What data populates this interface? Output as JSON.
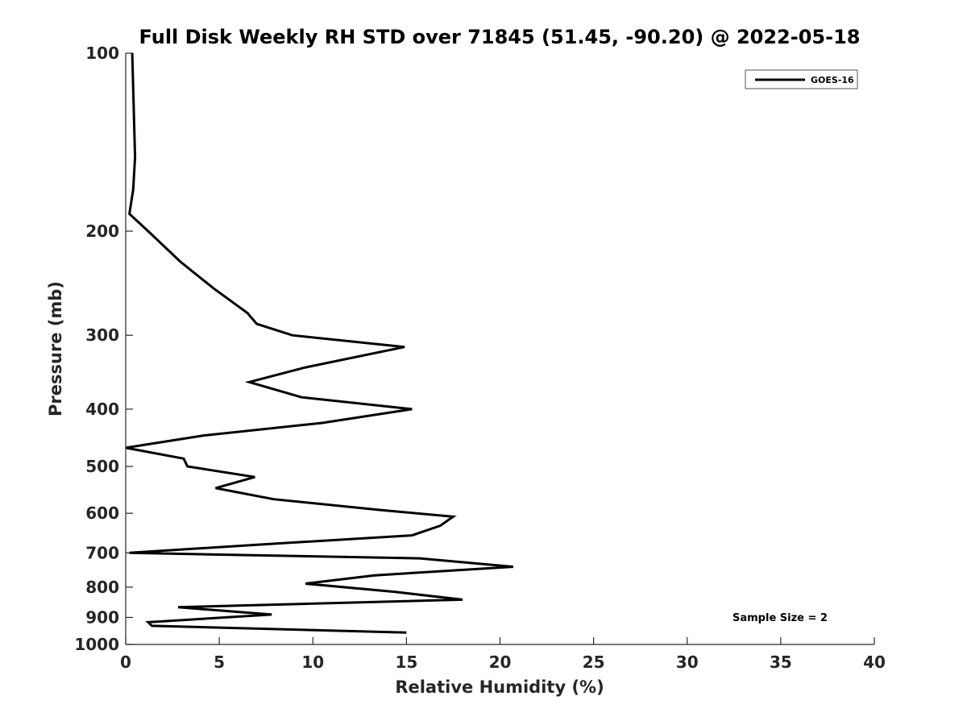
{
  "chart_data": {
    "type": "line",
    "title": "Full Disk Weekly RH STD over 71845 (51.45, -90.20) @ 2022-05-18",
    "xlabel": "Relative Humidity (%)",
    "ylabel": "Pressure (mb)",
    "xlim": [
      0,
      40
    ],
    "ylim": [
      100,
      1000
    ],
    "y_scale": "log",
    "y_inverted": true,
    "x_ticks": [
      0,
      5,
      10,
      15,
      20,
      25,
      30,
      35,
      40
    ],
    "y_ticks": [
      100,
      200,
      300,
      400,
      500,
      600,
      700,
      800,
      900,
      1000
    ],
    "grid": false,
    "legend_position": "top-right",
    "annotation": "Sample Size = 2",
    "series": [
      {
        "name": "GOES-16",
        "color": "#000000",
        "points": [
          [
            0.35,
            100
          ],
          [
            0.5,
            150
          ],
          [
            0.4,
            170
          ],
          [
            0.2,
            187
          ],
          [
            1.2,
            200
          ],
          [
            2.9,
            225
          ],
          [
            4.7,
            250
          ],
          [
            6.5,
            275
          ],
          [
            7.0,
            287
          ],
          [
            8.9,
            300
          ],
          [
            14.9,
            314
          ],
          [
            9.6,
            340
          ],
          [
            6.6,
            360
          ],
          [
            9.4,
            382
          ],
          [
            15.3,
            400
          ],
          [
            10.5,
            422
          ],
          [
            4.2,
            443
          ],
          [
            0.0,
            465
          ],
          [
            3.1,
            485
          ],
          [
            3.3,
            500
          ],
          [
            6.9,
            521
          ],
          [
            4.8,
            544
          ],
          [
            7.9,
            568
          ],
          [
            13.5,
            592
          ],
          [
            17.5,
            608
          ],
          [
            16.8,
            630
          ],
          [
            15.3,
            654
          ],
          [
            7.1,
            678
          ],
          [
            0.2,
            700
          ],
          [
            15.7,
            715
          ],
          [
            20.7,
            739
          ],
          [
            13.3,
            764
          ],
          [
            9.6,
            789
          ],
          [
            14.4,
            815
          ],
          [
            18.0,
            840
          ],
          [
            2.8,
            865
          ],
          [
            7.8,
            890
          ],
          [
            1.2,
            917
          ],
          [
            1.4,
            930
          ],
          [
            15.0,
            955
          ]
        ]
      }
    ]
  }
}
